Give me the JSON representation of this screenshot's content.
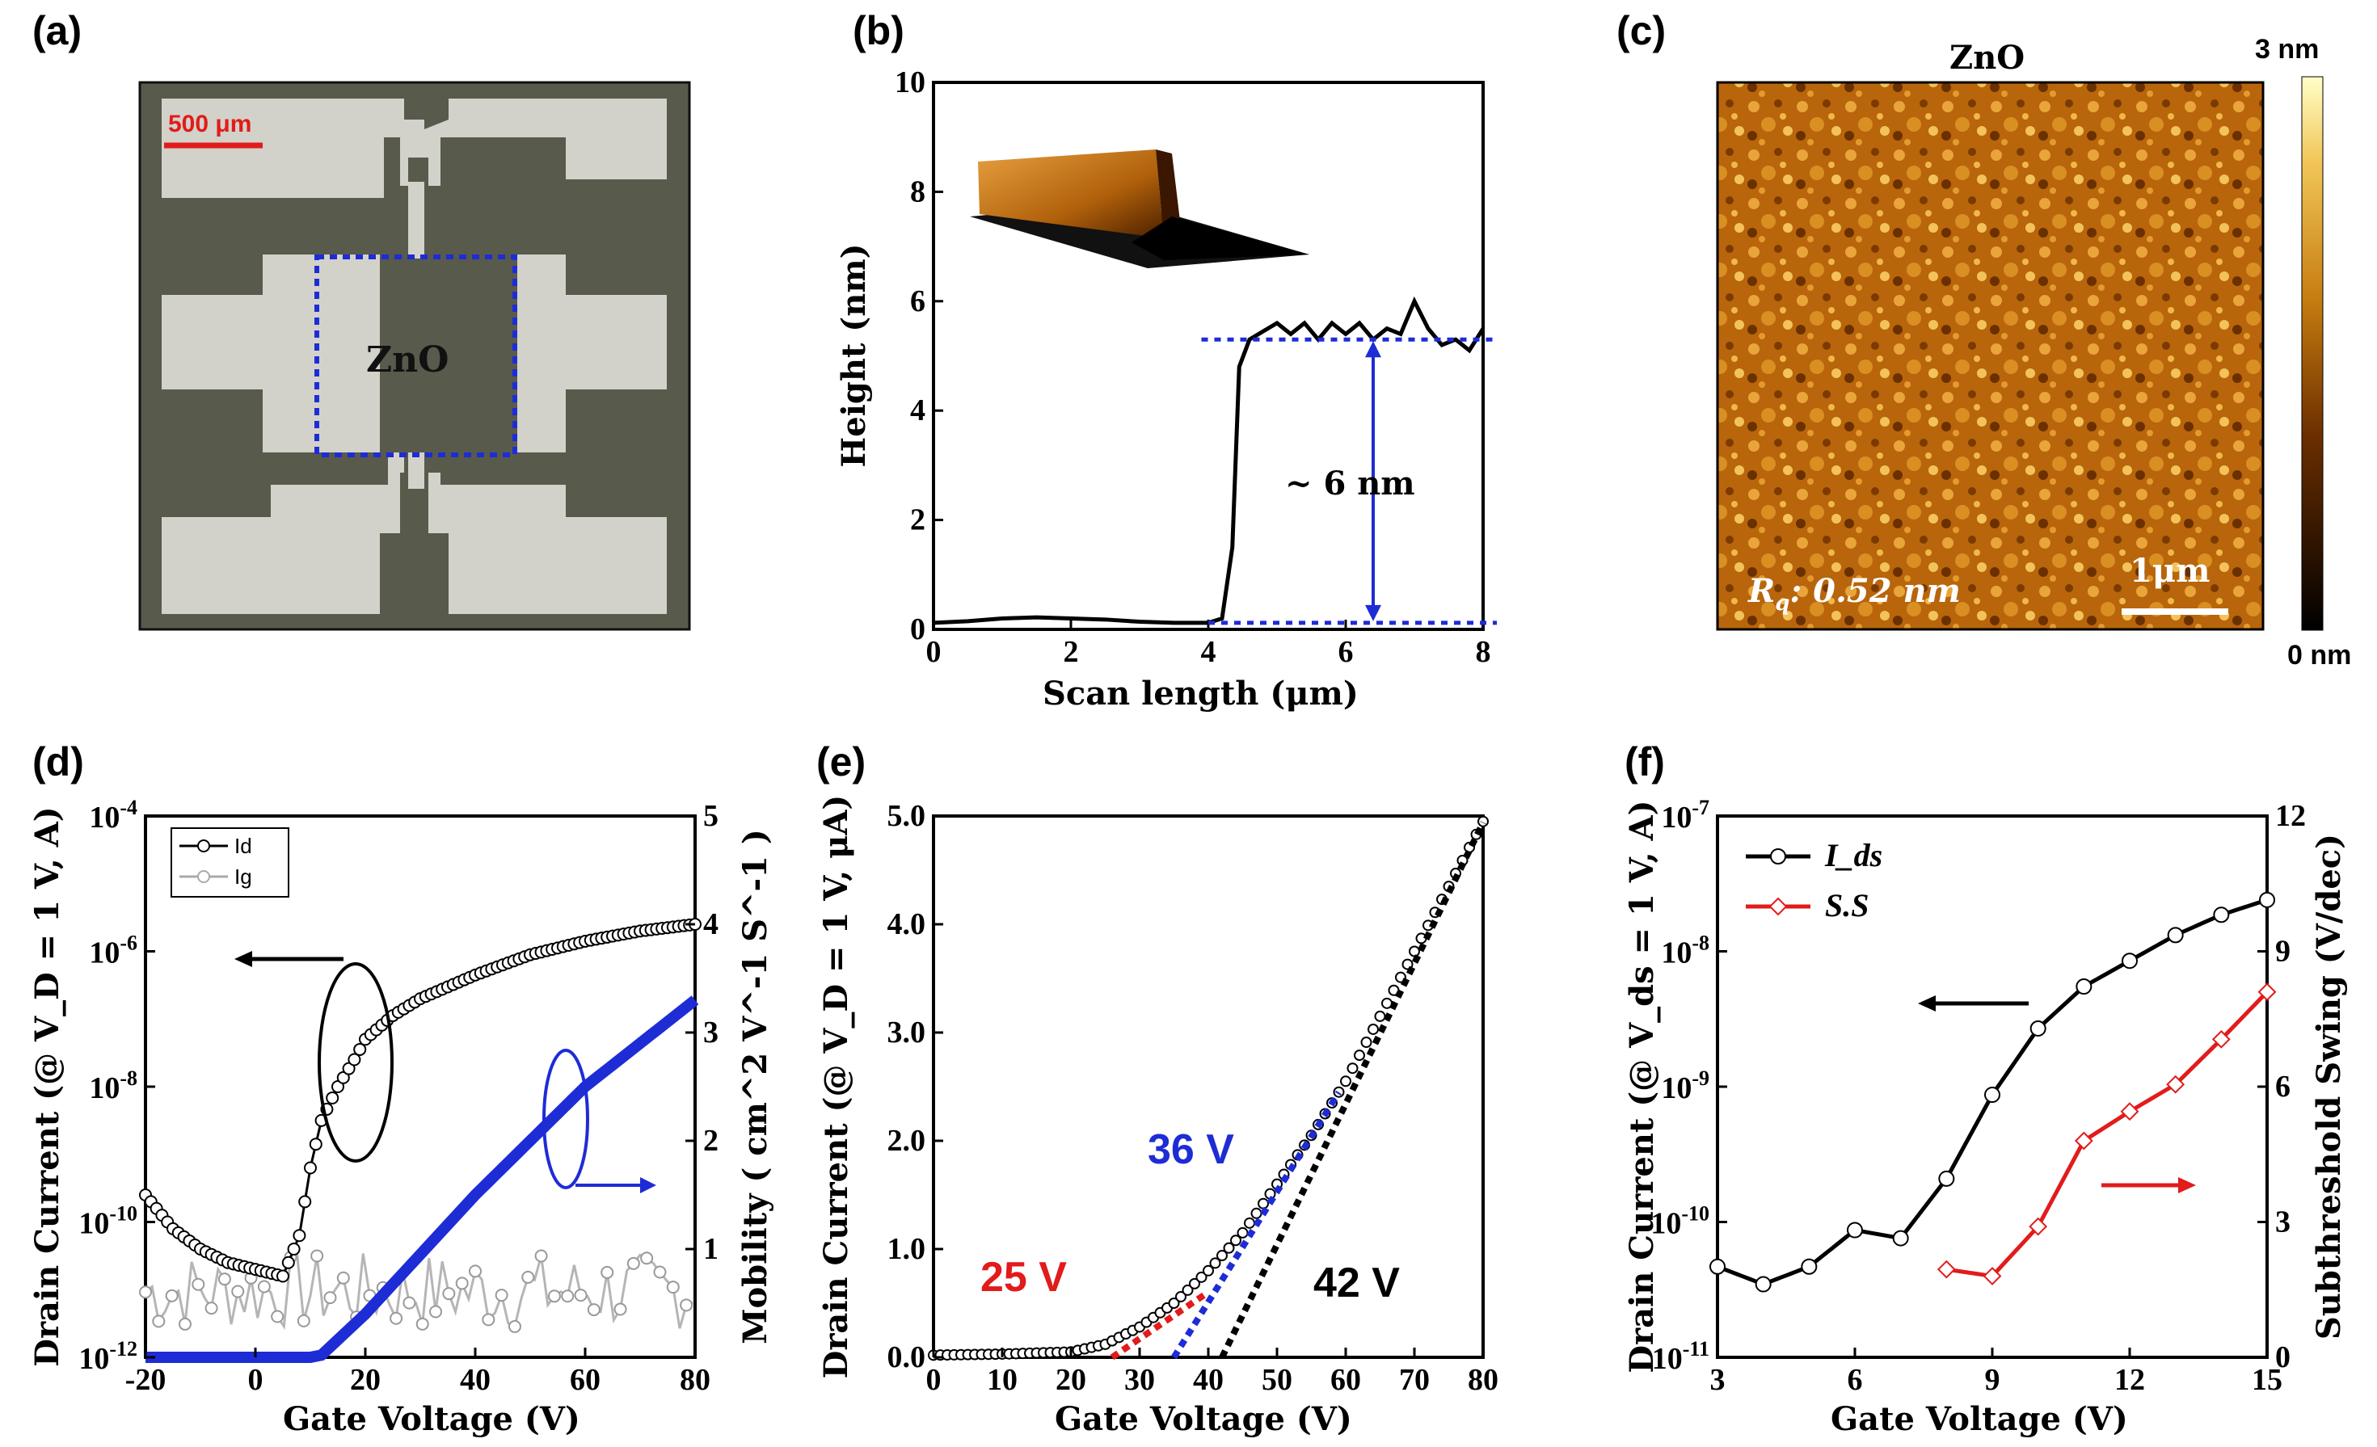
{
  "panel_labels": [
    "(a)",
    "(b)",
    "(c)",
    "(d)",
    "(e)",
    "(f)"
  ],
  "panel_a": {
    "scale_bar": "500 μm",
    "region_label": "ZnO"
  },
  "panel_c": {
    "title": "ZnO",
    "colorbar_top": "3 nm",
    "colorbar_bottom": "0 nm",
    "scale_bar": "1μm",
    "roughness": "R",
    "roughness_sub": "q",
    "roughness_value": ": 0.52 nm"
  },
  "chart_data": [
    {
      "panel": "b",
      "type": "line",
      "xlabel": "Scan length (μm)",
      "ylabel": "Height (nm)",
      "xlim": [
        0,
        8
      ],
      "ylim": [
        0,
        10
      ],
      "xticks": [
        "0",
        "2",
        "4",
        "6",
        "8"
      ],
      "yticks": [
        "0",
        "2",
        "4",
        "6",
        "8",
        "10"
      ],
      "annotation": "~ 6 nm",
      "x": [
        0,
        0.5,
        1,
        1.5,
        2,
        2.5,
        3,
        3.5,
        4,
        4.2,
        4.35,
        4.45,
        4.6,
        4.8,
        5.0,
        5.2,
        5.4,
        5.6,
        5.8,
        6.0,
        6.2,
        6.4,
        6.6,
        6.8,
        7.0,
        7.2,
        7.4,
        7.6,
        7.8,
        8.0
      ],
      "y": [
        0.12,
        0.15,
        0.2,
        0.22,
        0.2,
        0.18,
        0.14,
        0.12,
        0.12,
        0.2,
        1.5,
        4.8,
        5.3,
        5.45,
        5.6,
        5.4,
        5.6,
        5.3,
        5.6,
        5.4,
        5.6,
        5.3,
        5.5,
        5.4,
        6.0,
        5.5,
        5.2,
        5.3,
        5.1,
        5.5
      ]
    },
    {
      "panel": "d",
      "type": "line",
      "xlabel": "Gate Voltage (V)",
      "ylabel": "Drain Current (@ V_D = 1 V, A)",
      "ylabel_right": "Mobility ( cm^2 V^-1 S^-1 )",
      "xlim": [
        -20,
        80
      ],
      "ylim_log": [
        -12,
        -4
      ],
      "ylim_right": [
        0,
        5
      ],
      "xticks": [
        "-20",
        "0",
        "20",
        "40",
        "60",
        "80"
      ],
      "yticks": [
        "10^-12",
        "10^-10",
        "10^-8",
        "10^-6",
        "10^-4"
      ],
      "yticks_right": [
        "1",
        "2",
        "3",
        "4",
        "5"
      ],
      "legend": [
        "Id",
        "Ig"
      ],
      "series": [
        {
          "name": "Id",
          "x": [
            -20,
            -15,
            -10,
            -5,
            0,
            5,
            8,
            10,
            12,
            15,
            18,
            20,
            25,
            30,
            40,
            50,
            60,
            70,
            80
          ],
          "y": [
            -9.6,
            -10.1,
            -10.4,
            -10.6,
            -10.7,
            -10.8,
            -10.2,
            -9.2,
            -8.5,
            -8.0,
            -7.6,
            -7.3,
            -6.95,
            -6.7,
            -6.35,
            -6.05,
            -5.85,
            -5.7,
            -5.6
          ]
        },
        {
          "name": "Mobility",
          "x": [
            -20,
            0,
            10,
            12,
            20,
            30,
            40,
            50,
            60,
            70,
            80
          ],
          "y": [
            0,
            0,
            0,
            0.02,
            0.4,
            0.95,
            1.5,
            2.0,
            2.5,
            2.9,
            3.3
          ]
        }
      ]
    },
    {
      "panel": "e",
      "type": "line",
      "xlabel": "Gate Voltage (V)",
      "ylabel": "Drain Current (@ V_D = 1 V, μA)",
      "xlim": [
        0,
        80
      ],
      "ylim": [
        0,
        5
      ],
      "xticks": [
        "0",
        "10",
        "20",
        "30",
        "40",
        "50",
        "60",
        "70",
        "80"
      ],
      "yticks": [
        "0.0",
        "1.0",
        "2.0",
        "3.0",
        "4.0",
        "5.0"
      ],
      "annotations": [
        "25 V",
        "36 V",
        "42 V"
      ],
      "x": [
        0,
        10,
        20,
        25,
        30,
        35,
        40,
        45,
        50,
        55,
        60,
        65,
        70,
        75,
        80
      ],
      "y": [
        0.02,
        0.03,
        0.05,
        0.12,
        0.28,
        0.5,
        0.8,
        1.15,
        1.6,
        2.05,
        2.55,
        3.15,
        3.75,
        4.35,
        4.95
      ],
      "fits": [
        {
          "label": "25 V",
          "x0": 26,
          "x1": 40
        },
        {
          "label": "36 V",
          "x0": 35,
          "x1": 59
        },
        {
          "label": "42 V",
          "x0": 42,
          "x1": 80
        }
      ]
    },
    {
      "panel": "f",
      "type": "line",
      "xlabel": "Gate Voltage (V)",
      "ylabel": "Drain Current (@ V_ds = 1 V, A)",
      "ylabel_right": "Subthreshold Swing (V/dec)",
      "xlim": [
        3,
        15
      ],
      "ylim_log": [
        -11,
        -7
      ],
      "ylim_right": [
        0,
        12
      ],
      "xticks": [
        "3",
        "6",
        "9",
        "12",
        "15"
      ],
      "yticks": [
        "10^-11",
        "10^-10",
        "10^-9",
        "10^-8",
        "10^-7"
      ],
      "yticks_right": [
        "0",
        "3",
        "6",
        "9",
        "12"
      ],
      "legend": [
        "I_ds",
        "S.S"
      ],
      "series": [
        {
          "name": "I_ds",
          "x": [
            3,
            4,
            5,
            6,
            7,
            8,
            9,
            10,
            11,
            12,
            13,
            14,
            15
          ],
          "y": [
            -10.33,
            -10.46,
            -10.33,
            -10.06,
            -10.12,
            -9.68,
            -9.06,
            -8.57,
            -8.26,
            -8.07,
            -7.88,
            -7.73,
            -7.62
          ]
        },
        {
          "name": "S.S",
          "x": [
            8,
            9,
            10,
            11,
            12,
            13,
            14,
            15
          ],
          "y": [
            1.95,
            1.8,
            2.9,
            4.8,
            5.45,
            6.05,
            7.05,
            8.1
          ]
        }
      ]
    }
  ]
}
